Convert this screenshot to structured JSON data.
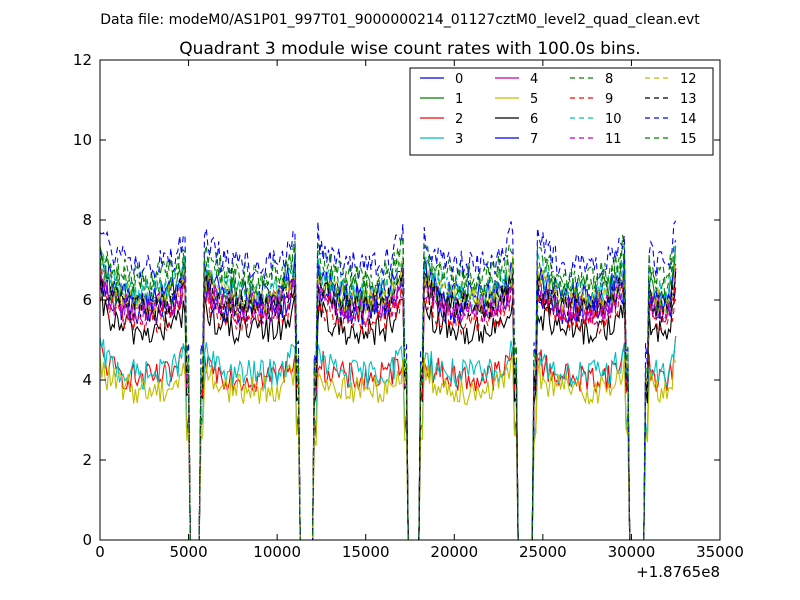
{
  "chart_data": {
    "type": "line",
    "suptitle": "Data file: modeM0/AS1P01_997T01_9000000214_01127cztM0_level2_quad_clean.evt",
    "title": "Quadrant 3 module wise count rates with 100.0s bins.",
    "xlabel": "",
    "ylabel": "",
    "x_offset_label": "+1.8765e8",
    "xlim": [
      0,
      35000
    ],
    "ylim": [
      0,
      12
    ],
    "xticks": [
      0,
      5000,
      10000,
      15000,
      20000,
      25000,
      30000,
      35000
    ],
    "xtick_labels": [
      "0",
      "5000",
      "10000",
      "15000",
      "20000",
      "25000",
      "30000",
      "35000"
    ],
    "yticks": [
      0,
      2,
      4,
      6,
      8,
      10,
      12
    ],
    "ytick_labels": [
      "0",
      "2",
      "4",
      "6",
      "8",
      "10",
      "12"
    ],
    "grid": false,
    "legend_position": "top-right",
    "legend_columns": 4,
    "orbit_segments": [
      [
        0,
        5000
      ],
      [
        5700,
        11200
      ],
      [
        12100,
        17300
      ],
      [
        18100,
        23500
      ],
      [
        24500,
        29800
      ],
      [
        30800,
        32500
      ]
    ],
    "series": [
      {
        "name": "0",
        "color": "#0000ff",
        "dash": "solid",
        "base": 5.9,
        "amp": 0.9
      },
      {
        "name": "1",
        "color": "#008000",
        "dash": "solid",
        "base": 6.2,
        "amp": 1.0
      },
      {
        "name": "2",
        "color": "#ff0000",
        "dash": "solid",
        "base": 4.2,
        "amp": 0.8
      },
      {
        "name": "3",
        "color": "#00bfbf",
        "dash": "solid",
        "base": 4.3,
        "amp": 0.8
      },
      {
        "name": "4",
        "color": "#bf00bf",
        "dash": "solid",
        "base": 6.0,
        "amp": 0.9
      },
      {
        "name": "5",
        "color": "#bfbf00",
        "dash": "solid",
        "base": 3.9,
        "amp": 0.7
      },
      {
        "name": "6",
        "color": "#000000",
        "dash": "solid",
        "base": 5.4,
        "amp": 0.9
      },
      {
        "name": "7",
        "color": "#0000ff",
        "dash": "solid",
        "base": 6.3,
        "amp": 1.0
      },
      {
        "name": "8",
        "color": "#008000",
        "dash": "dashed",
        "base": 6.6,
        "amp": 1.0
      },
      {
        "name": "9",
        "color": "#ff0000",
        "dash": "dashed",
        "base": 5.7,
        "amp": 0.9
      },
      {
        "name": "10",
        "color": "#00bfbf",
        "dash": "dashed",
        "base": 6.4,
        "amp": 1.0
      },
      {
        "name": "11",
        "color": "#bf00bf",
        "dash": "dashed",
        "base": 5.9,
        "amp": 0.9
      },
      {
        "name": "12",
        "color": "#bfbf00",
        "dash": "dashed",
        "base": 6.2,
        "amp": 1.0
      },
      {
        "name": "13",
        "color": "#000000",
        "dash": "dashed",
        "base": 6.0,
        "amp": 0.9
      },
      {
        "name": "14",
        "color": "#0000ff",
        "dash": "dashed",
        "base": 7.1,
        "amp": 1.2
      },
      {
        "name": "15",
        "color": "#008000",
        "dash": "dashed",
        "base": 6.8,
        "amp": 1.1
      }
    ]
  }
}
